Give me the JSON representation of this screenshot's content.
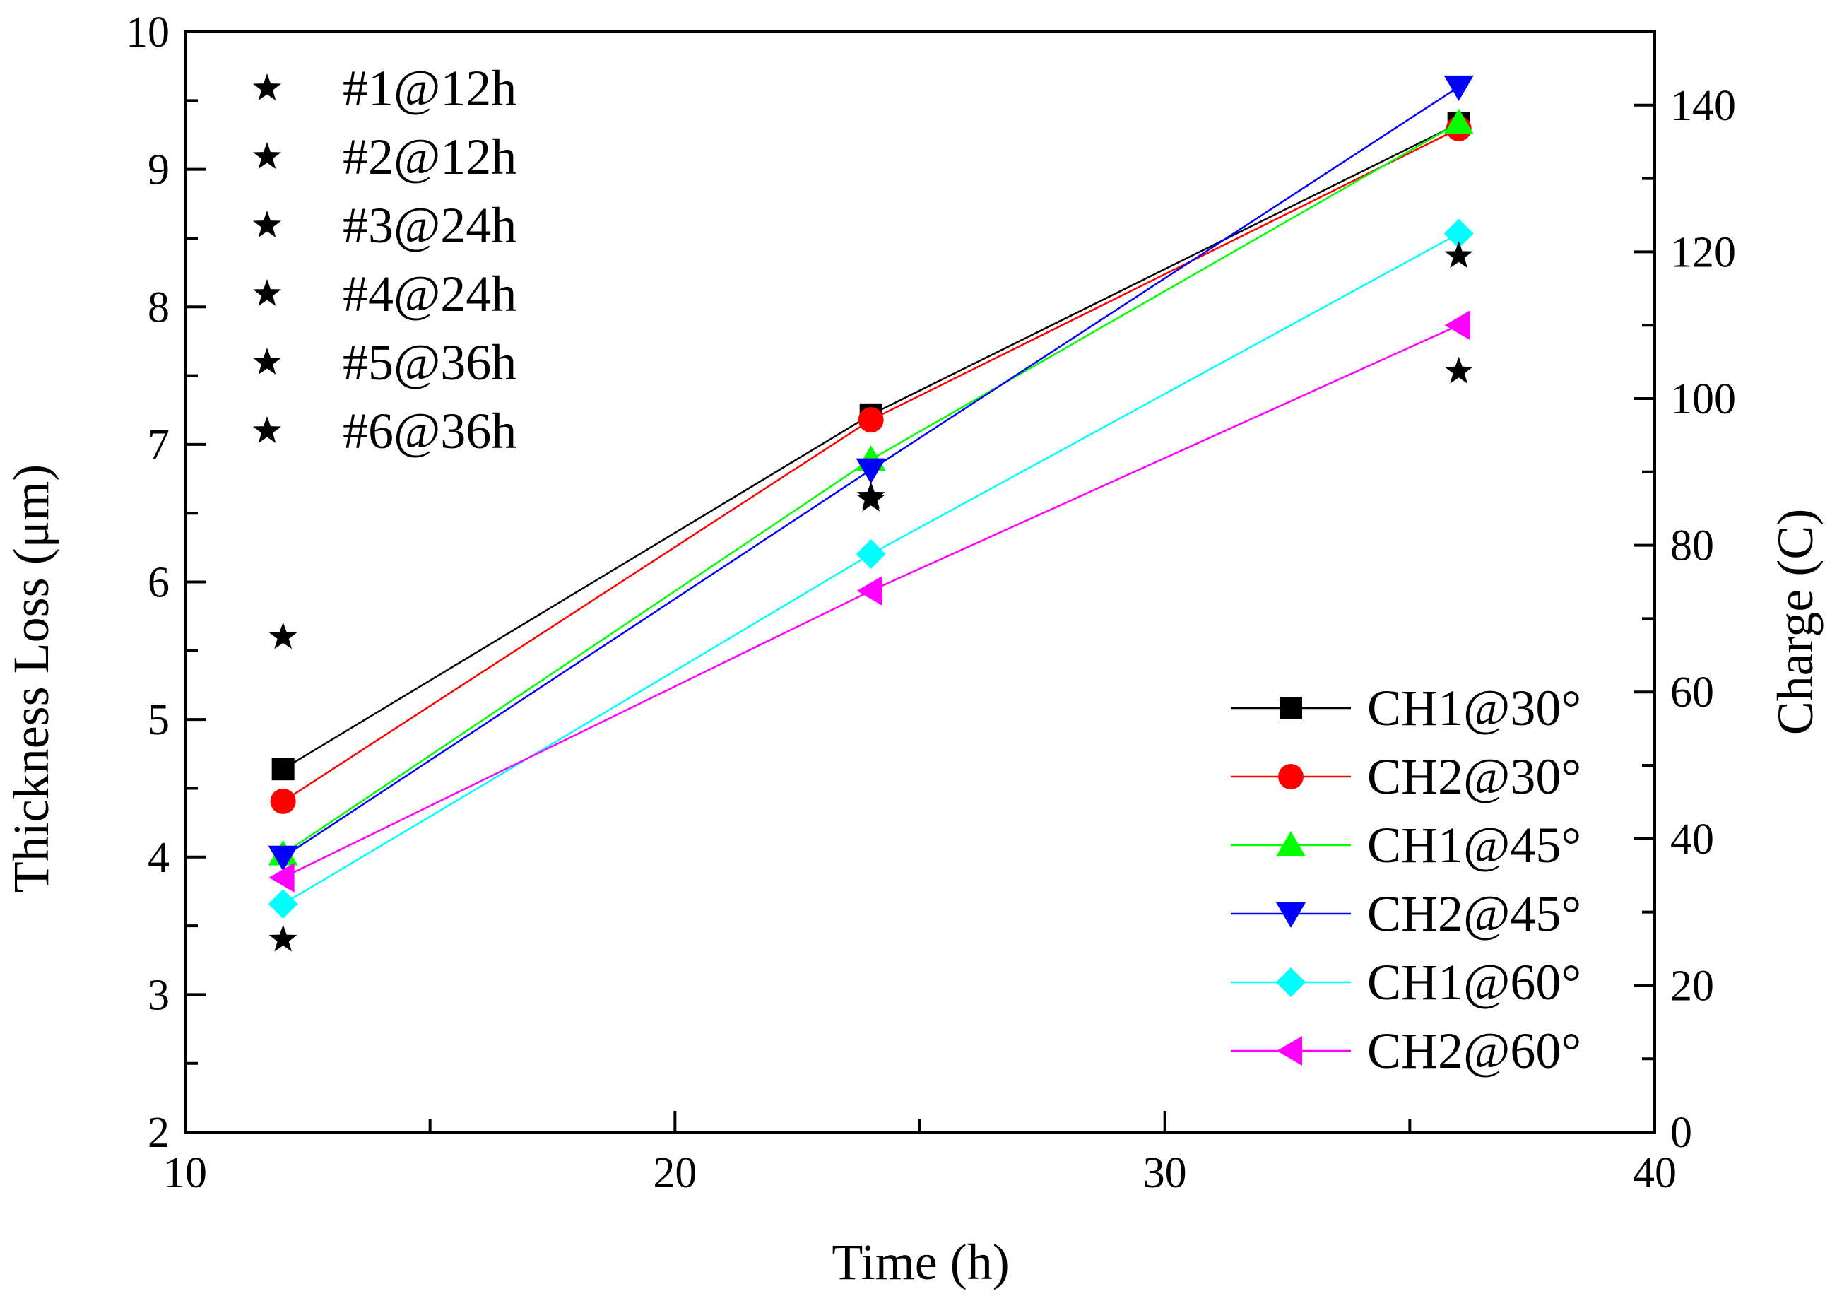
{
  "chart_data": {
    "type": "line",
    "title": "",
    "xlabel": "Time (h)",
    "ylabel": "Thickness Loss (μm)",
    "y2label": "Charge (C)",
    "xlim": [
      10,
      40
    ],
    "ylim": [
      2,
      10
    ],
    "y2lim": [
      0,
      150
    ],
    "x_ticks": [
      10,
      20,
      30,
      40
    ],
    "y_ticks": [
      2,
      3,
      4,
      5,
      6,
      7,
      8,
      9,
      10
    ],
    "y2_ticks": [
      0,
      20,
      40,
      60,
      80,
      100,
      120,
      140
    ],
    "grid": false,
    "series": [
      {
        "name": "CH1@30°",
        "axis": "right",
        "color": "#000000",
        "marker": "square",
        "x": [
          12,
          24,
          36
        ],
        "y": [
          49.5,
          97.8,
          137.5
        ]
      },
      {
        "name": "CH2@30°",
        "axis": "right",
        "color": "#ff0000",
        "marker": "circle",
        "x": [
          12,
          24,
          36
        ],
        "y": [
          45.1,
          97.1,
          136.8
        ]
      },
      {
        "name": "CH1@45°",
        "axis": "right",
        "color": "#00ff00",
        "marker": "triangle-up",
        "x": [
          12,
          24,
          36
        ],
        "y": [
          37.9,
          91.7,
          137.6
        ]
      },
      {
        "name": "CH2@45°",
        "axis": "right",
        "color": "#0000ff",
        "marker": "triangle-down",
        "x": [
          12,
          24,
          36
        ],
        "y": [
          37.5,
          90.3,
          142.5
        ]
      },
      {
        "name": "CH1@60°",
        "axis": "right",
        "color": "#00ffff",
        "marker": "diamond",
        "x": [
          12,
          24,
          36
        ],
        "y": [
          31.1,
          78.8,
          122.5
        ]
      },
      {
        "name": "CH2@60°",
        "axis": "right",
        "color": "#ff00ff",
        "marker": "triangle-left",
        "x": [
          12,
          24,
          36
        ],
        "y": [
          34.7,
          73.8,
          110.0
        ]
      }
    ],
    "stars": {
      "axis": "left",
      "color": "#000000",
      "marker": "star",
      "labels": [
        "#1@12h",
        "#2@12h",
        "#3@24h",
        "#4@24h",
        "#5@36h",
        "#6@36h"
      ],
      "x": [
        12,
        12,
        24,
        24,
        36,
        36
      ],
      "y": [
        5.6,
        3.4,
        6.62,
        6.6,
        8.37,
        7.53
      ]
    },
    "legends": {
      "series_position": "bottom-right",
      "stars_position": "top-left"
    }
  }
}
